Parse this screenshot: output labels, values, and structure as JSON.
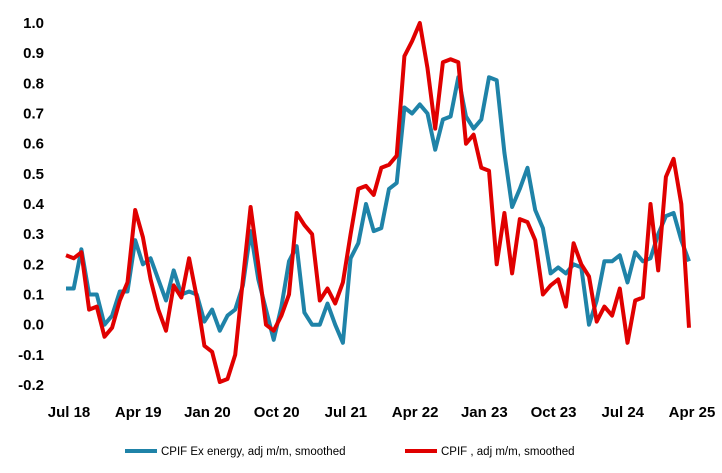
{
  "chart_data": {
    "type": "line",
    "title": "",
    "xlabel": "",
    "ylabel": "",
    "ylim": [
      -0.2,
      1.0
    ],
    "y_ticks": [
      "1.0",
      "0.9",
      "0.8",
      "0.7",
      "0.6",
      "0.5",
      "0.4",
      "0.3",
      "0.2",
      "0.1",
      "0.0",
      "-0.1",
      "-0.2"
    ],
    "x_ticks": [
      "Jul 18",
      "Apr 19",
      "Jan 20",
      "Oct 20",
      "Jul 21",
      "Apr 22",
      "Jan 23",
      "Oct 23",
      "Jul 24",
      "Apr 25"
    ],
    "x_start": "Jul 18",
    "x_end": "Apr 25",
    "grid": false,
    "legend_position": "bottom",
    "series": [
      {
        "name": "CPIF Ex energy, adj m/m, smoothed",
        "color": "#1F83A8",
        "values": [
          0.12,
          0.12,
          0.25,
          0.1,
          0.1,
          0.0,
          0.03,
          0.11,
          0.11,
          0.28,
          0.2,
          0.22,
          0.15,
          0.08,
          0.18,
          0.1,
          0.11,
          0.1,
          0.01,
          0.05,
          -0.02,
          0.03,
          0.05,
          0.13,
          0.31,
          0.15,
          0.05,
          -0.05,
          0.06,
          0.21,
          0.26,
          0.04,
          0.0,
          0.0,
          0.07,
          0.0,
          -0.06,
          0.22,
          0.27,
          0.4,
          0.31,
          0.32,
          0.45,
          0.47,
          0.72,
          0.7,
          0.73,
          0.7,
          0.58,
          0.68,
          0.69,
          0.82,
          0.69,
          0.65,
          0.68,
          0.82,
          0.81,
          0.57,
          0.39,
          0.45,
          0.52,
          0.38,
          0.32,
          0.17,
          0.19,
          0.17,
          0.2,
          0.19,
          0.0,
          0.08,
          0.21,
          0.21,
          0.23,
          0.14,
          0.24,
          0.21,
          0.22,
          0.3,
          0.36,
          0.37,
          0.28,
          0.21
        ]
      },
      {
        "name": "CPIF , adj m/m, smoothed",
        "color": "#E00000",
        "values": [
          0.23,
          0.22,
          0.24,
          0.05,
          0.06,
          -0.04,
          -0.01,
          0.08,
          0.14,
          0.38,
          0.29,
          0.15,
          0.05,
          -0.02,
          0.13,
          0.09,
          0.22,
          0.09,
          -0.07,
          -0.09,
          -0.19,
          -0.18,
          -0.1,
          0.15,
          0.39,
          0.2,
          0.0,
          -0.02,
          0.03,
          0.1,
          0.37,
          0.33,
          0.3,
          0.08,
          0.12,
          0.07,
          0.14,
          0.3,
          0.45,
          0.46,
          0.43,
          0.52,
          0.53,
          0.56,
          0.89,
          0.94,
          1.0,
          0.85,
          0.65,
          0.87,
          0.88,
          0.87,
          0.6,
          0.63,
          0.52,
          0.51,
          0.2,
          0.37,
          0.17,
          0.35,
          0.34,
          0.28,
          0.1,
          0.13,
          0.15,
          0.06,
          0.27,
          0.2,
          0.16,
          0.01,
          0.06,
          0.03,
          0.12,
          -0.06,
          0.08,
          0.09,
          0.4,
          0.18,
          0.49,
          0.55,
          0.4,
          -0.01
        ]
      }
    ]
  }
}
